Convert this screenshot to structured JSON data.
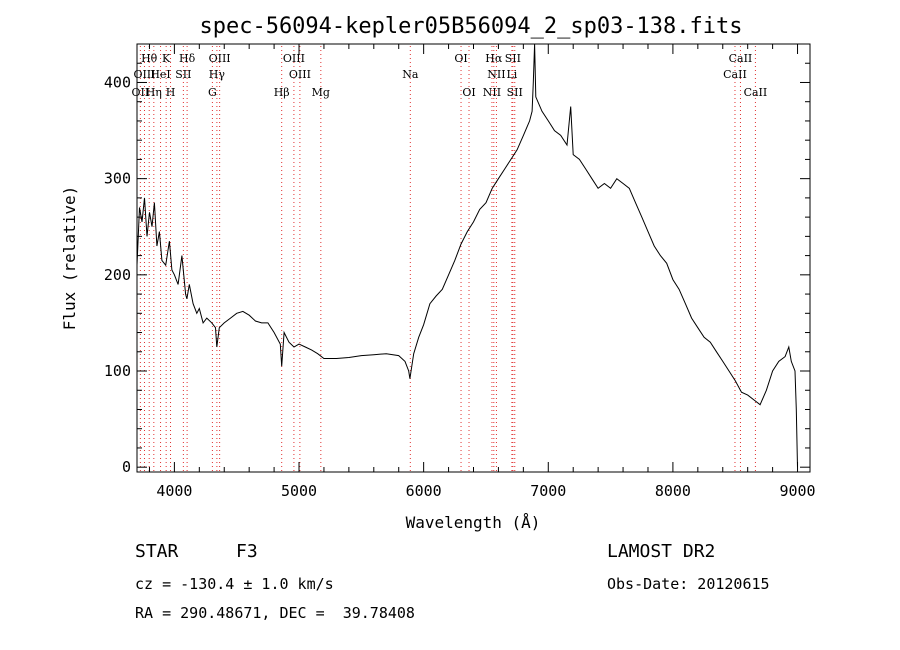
{
  "chart_data": {
    "type": "line",
    "title": "spec-56094-kepler05B56094_2_sp03-138.fits",
    "xlabel": "Wavelength (Å)",
    "ylabel": "Flux (relative)",
    "xlim": [
      3700,
      9100
    ],
    "ylim": [
      -5,
      440
    ],
    "x_ticks": [
      4000,
      5000,
      6000,
      7000,
      8000,
      9000
    ],
    "y_ticks": [
      0,
      100,
      200,
      300,
      400
    ],
    "grid": false,
    "series": [
      {
        "x": [
          3700,
          3720,
          3740,
          3760,
          3780,
          3800,
          3820,
          3840,
          3860,
          3880,
          3900,
          3930,
          3960,
          3980,
          4000,
          4030,
          4060,
          4090,
          4100,
          4120,
          4150,
          4180,
          4200,
          4230,
          4260,
          4300,
          4330,
          4340,
          4360,
          4400,
          4450,
          4500,
          4550,
          4600,
          4650,
          4700,
          4750,
          4800,
          4850,
          4861,
          4880,
          4920,
          4960,
          5000,
          5050,
          5100,
          5150,
          5200,
          5300,
          5400,
          5500,
          5600,
          5700,
          5800,
          5850,
          5880,
          5890,
          5920,
          5960,
          6000,
          6050,
          6100,
          6150,
          6200,
          6250,
          6300,
          6350,
          6400,
          6450,
          6500,
          6550,
          6600,
          6650,
          6700,
          6750,
          6800,
          6850,
          6870,
          6880,
          6890,
          6900,
          6950,
          7000,
          7050,
          7100,
          7150,
          7180,
          7200,
          7250,
          7300,
          7350,
          7400,
          7450,
          7500,
          7550,
          7600,
          7650,
          7700,
          7750,
          7800,
          7850,
          7900,
          7950,
          8000,
          8050,
          8100,
          8150,
          8200,
          8250,
          8300,
          8350,
          8400,
          8450,
          8500,
          8550,
          8600,
          8650,
          8700,
          8750,
          8800,
          8850,
          8900,
          8930,
          8950,
          8980,
          8990,
          9000
        ],
        "y": [
          210,
          270,
          255,
          280,
          240,
          265,
          250,
          275,
          230,
          245,
          215,
          210,
          235,
          205,
          200,
          190,
          220,
          180,
          175,
          190,
          170,
          160,
          165,
          150,
          155,
          150,
          145,
          125,
          145,
          150,
          155,
          160,
          162,
          158,
          152,
          150,
          150,
          140,
          128,
          105,
          140,
          130,
          125,
          128,
          125,
          122,
          118,
          113,
          113,
          114,
          116,
          117,
          118,
          116,
          110,
          100,
          92,
          118,
          135,
          148,
          170,
          178,
          185,
          200,
          215,
          232,
          245,
          255,
          268,
          275,
          290,
          300,
          310,
          320,
          330,
          345,
          360,
          370,
          400,
          440,
          385,
          370,
          360,
          350,
          345,
          335,
          375,
          325,
          320,
          310,
          300,
          290,
          295,
          290,
          300,
          295,
          290,
          275,
          260,
          245,
          230,
          220,
          212,
          195,
          185,
          170,
          155,
          145,
          135,
          130,
          120,
          110,
          100,
          90,
          78,
          75,
          70,
          65,
          80,
          100,
          110,
          115,
          125,
          110,
          100,
          60,
          0
        ]
      }
    ],
    "spectral_lines": [
      {
        "label": "Hθ",
        "x": 3798,
        "row": 1
      },
      {
        "label": "K",
        "x": 3934,
        "row": 1
      },
      {
        "label": "Hδ",
        "x": 4102,
        "row": 1
      },
      {
        "label": "OIII",
        "x": 4363,
        "row": 1
      },
      {
        "label": "OIII",
        "x": 4959,
        "row": 1
      },
      {
        "label": "OI",
        "x": 6300,
        "row": 1
      },
      {
        "label": "Hα",
        "x": 6563,
        "row": 1
      },
      {
        "label": "SII",
        "x": 6716,
        "row": 1
      },
      {
        "label": "CaII",
        "x": 8542,
        "row": 1
      },
      {
        "label": "OIII",
        "x": 3760,
        "row": 2
      },
      {
        "label": "HeI",
        "x": 3889,
        "row": 2
      },
      {
        "label": "SII",
        "x": 4072,
        "row": 2
      },
      {
        "label": "Hγ",
        "x": 4341,
        "row": 2
      },
      {
        "label": "OIII",
        "x": 5007,
        "row": 2
      },
      {
        "label": "Na",
        "x": 5893,
        "row": 2
      },
      {
        "label": "NII",
        "x": 6584,
        "row": 2
      },
      {
        "label": "Li",
        "x": 6708,
        "row": 2
      },
      {
        "label": "CaII",
        "x": 8498,
        "row": 2
      },
      {
        "label": "OII",
        "x": 3727,
        "row": 3
      },
      {
        "label": "Hη",
        "x": 3835,
        "row": 3
      },
      {
        "label": "H",
        "x": 3969,
        "row": 3
      },
      {
        "label": "G",
        "x": 4305,
        "row": 3
      },
      {
        "label": "Hβ",
        "x": 4861,
        "row": 3
      },
      {
        "label": "Mg",
        "x": 5175,
        "row": 3
      },
      {
        "label": "OI",
        "x": 6364,
        "row": 3
      },
      {
        "label": "NII",
        "x": 6548,
        "row": 3
      },
      {
        "label": "SII",
        "x": 6731,
        "row": 3
      },
      {
        "label": "CaII",
        "x": 8662,
        "row": 3
      }
    ]
  },
  "info": {
    "object_type": "STAR",
    "subclass": "F3",
    "survey": "LAMOST DR2",
    "redshift": "cz = -130.4 ± 1.0 km/s",
    "obs_date": "Obs-Date: 20120615",
    "coords": "RA = 290.48671, DEC =  39.78408"
  }
}
